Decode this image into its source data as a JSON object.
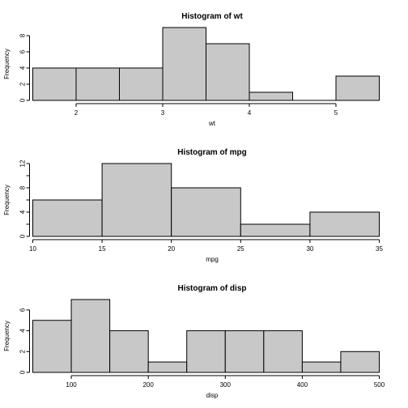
{
  "chart_data": [
    {
      "type": "bar",
      "title": "Histogram of wt",
      "xlabel": "wt",
      "ylabel": "Frequency",
      "bin_edges": [
        1.5,
        2.0,
        2.5,
        3.0,
        3.5,
        4.0,
        4.5,
        5.0,
        5.5
      ],
      "values": [
        4,
        4,
        4,
        9,
        7,
        1,
        0,
        3
      ],
      "xlim": [
        1.5,
        5.5
      ],
      "ylim": [
        0,
        9
      ],
      "xticks": [
        2,
        3,
        4,
        5
      ],
      "yticks": [
        0,
        2,
        4,
        6,
        8
      ],
      "bar_color": "#c8c8c8"
    },
    {
      "type": "bar",
      "title": "Histogram of mpg",
      "xlabel": "mpg",
      "ylabel": "Frequency",
      "bin_edges": [
        10,
        15,
        20,
        25,
        30,
        35
      ],
      "values": [
        6,
        12,
        8,
        2,
        4
      ],
      "xlim": [
        10,
        35
      ],
      "ylim": [
        0,
        12
      ],
      "xticks": [
        10,
        15,
        20,
        25,
        30,
        35
      ],
      "yticks": [
        0,
        2,
        4,
        6,
        8,
        10,
        12
      ],
      "ytick_labels": [
        "0",
        "",
        "4",
        "",
        "8",
        "",
        "12"
      ],
      "bar_color": "#c8c8c8"
    },
    {
      "type": "bar",
      "title": "Histogram of disp",
      "xlabel": "disp",
      "ylabel": "Frequency",
      "bin_edges": [
        50,
        100,
        150,
        200,
        250,
        300,
        350,
        400,
        450,
        500
      ],
      "values": [
        5,
        7,
        4,
        1,
        4,
        4,
        4,
        1,
        2
      ],
      "xlim": [
        50,
        500
      ],
      "ylim": [
        0,
        7
      ],
      "xticks": [
        100,
        200,
        300,
        400,
        500
      ],
      "yticks": [
        0,
        2,
        4,
        6
      ],
      "bar_color": "#c8c8c8"
    }
  ]
}
